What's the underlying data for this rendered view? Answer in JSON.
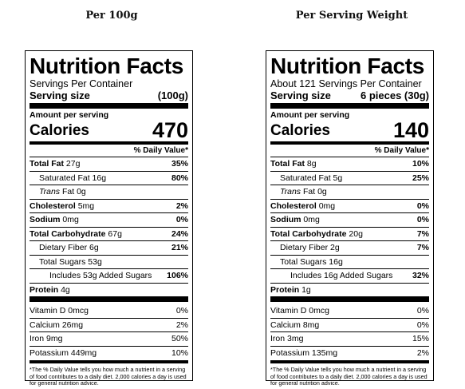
{
  "labels": [
    {
      "heading": "Per 100g",
      "title": "Nutrition Facts",
      "servings": "Servings Per Container",
      "serving_size_label": "Serving size",
      "serving_size_value": "(100g)",
      "amount_per_serving": "Amount per serving",
      "calories_label": "Calories",
      "calories_value": "470",
      "dv_header": "% Daily Value*",
      "total_fat": {
        "label": "Total Fat",
        "amount": "27g",
        "dv": "35%"
      },
      "saturated_fat": {
        "label": "Saturated Fat 16g",
        "dv": "80%"
      },
      "trans_fat": {
        "label": "Trans",
        "rest": " Fat 0g"
      },
      "cholesterol": {
        "label": "Cholesterol",
        "amount": "5mg",
        "dv": "2%"
      },
      "sodium": {
        "label": "Sodium",
        "amount": "0mg",
        "dv": "0%"
      },
      "total_carb": {
        "label": "Total Carbohydrate",
        "amount": "67g",
        "dv": "24%"
      },
      "fiber": {
        "label": "Dietary Fiber 6g",
        "dv": "21%"
      },
      "sugars": {
        "label": "Total Sugars 53g"
      },
      "added_sugars": {
        "label": "Includes 53g Added Sugars",
        "dv": "106%"
      },
      "protein": {
        "label": "Protein",
        "amount": "4g"
      },
      "vitamin_d": {
        "label": "Vitamin D 0mcg",
        "dv": "0%"
      },
      "calcium": {
        "label": "Calcium 26mg",
        "dv": "2%"
      },
      "iron": {
        "label": "Iron 9mg",
        "dv": "50%"
      },
      "potassium": {
        "label": "Potassium 449mg",
        "dv": "10%"
      },
      "footnote": "*The % Daily Value tells you how much a nutrient in a serving of food contributes to a daily diet. 2,000 calories a day is used for general nutrition advice."
    },
    {
      "heading": "Per Serving Weight",
      "title": "Nutrition Facts",
      "servings": "About 121 Servings Per Container",
      "serving_size_label": "Serving size",
      "serving_size_value": "6 pieces (30g)",
      "amount_per_serving": "Amount per serving",
      "calories_label": "Calories",
      "calories_value": "140",
      "dv_header": "% Daily Value*",
      "total_fat": {
        "label": "Total Fat",
        "amount": "8g",
        "dv": "10%"
      },
      "saturated_fat": {
        "label": "Saturated Fat 5g",
        "dv": "25%"
      },
      "trans_fat": {
        "label": "Trans",
        "rest": " Fat 0g"
      },
      "cholesterol": {
        "label": "Cholesterol",
        "amount": "0mg",
        "dv": "0%"
      },
      "sodium": {
        "label": "Sodium",
        "amount": "0mg",
        "dv": "0%"
      },
      "total_carb": {
        "label": "Total Carbohydrate",
        "amount": "20g",
        "dv": "7%"
      },
      "fiber": {
        "label": "Dietary Fiber 2g",
        "dv": "7%"
      },
      "sugars": {
        "label": "Total Sugars 16g"
      },
      "added_sugars": {
        "label": "Includes 16g Added Sugars",
        "dv": "32%"
      },
      "protein": {
        "label": "Protein",
        "amount": "1g"
      },
      "vitamin_d": {
        "label": "Vitamin D 0mcg",
        "dv": "0%"
      },
      "calcium": {
        "label": "Calcium 8mg",
        "dv": "0%"
      },
      "iron": {
        "label": "Iron 3mg",
        "dv": "15%"
      },
      "potassium": {
        "label": "Potassium 135mg",
        "dv": "2%"
      },
      "footnote": "*The % Daily Value tells you how much a nutrient in a serving of food contributes to a daily diet. 2,000 calories a day is used for general nutrition advice."
    }
  ]
}
